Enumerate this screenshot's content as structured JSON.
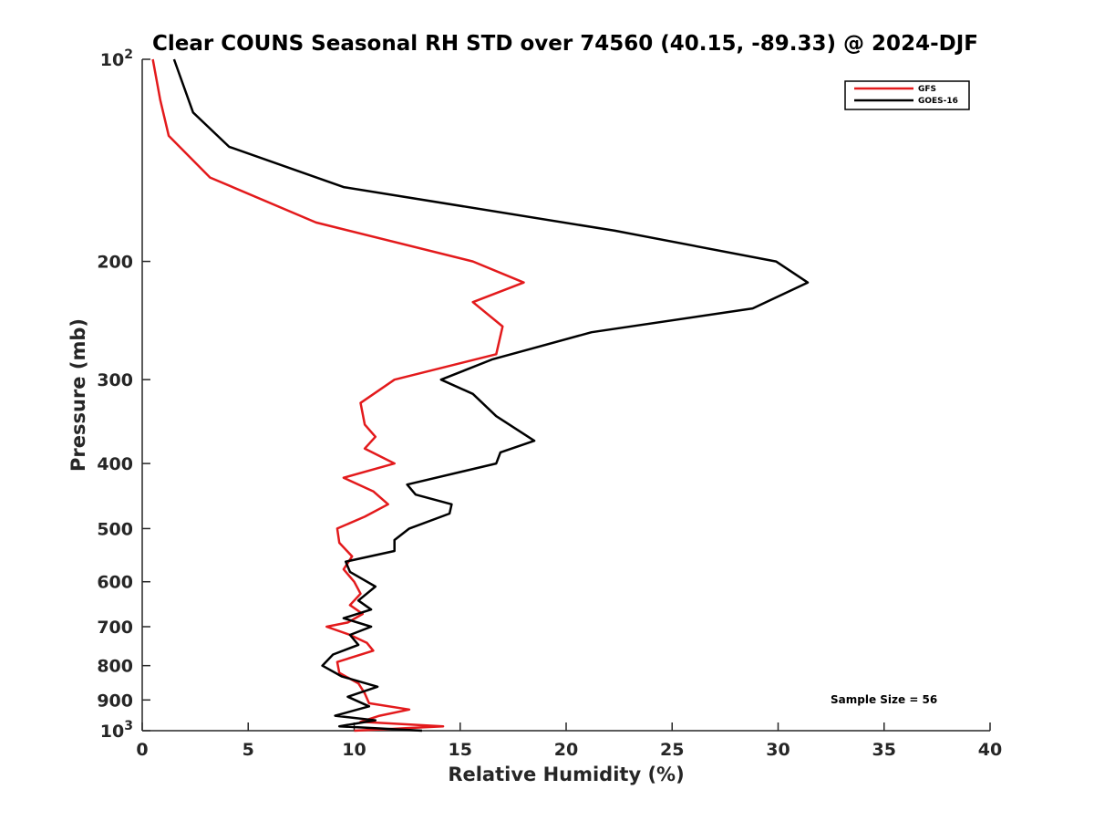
{
  "chart_data": {
    "type": "line",
    "title": "Clear COUNS Seasonal RH STD over 74560 (40.15, -89.33) @ 2024-DJF",
    "xlabel": "Relative Humidity (%)",
    "ylabel": "Pressure (mb)",
    "xlim": [
      0,
      40
    ],
    "ylim": [
      100,
      1000
    ],
    "yscale": "log",
    "y_reversed": true,
    "grid": false,
    "legend_position": "top-right",
    "x_ticks": [
      "0",
      "5",
      "10",
      "15",
      "20",
      "25",
      "30",
      "35",
      "40"
    ],
    "y_ticks": [
      {
        "value": 100,
        "base": "10",
        "exp": "2"
      },
      {
        "value": 200,
        "label": "200"
      },
      {
        "value": 300,
        "label": "300"
      },
      {
        "value": 400,
        "label": "400"
      },
      {
        "value": 500,
        "label": "500"
      },
      {
        "value": 600,
        "label": "600"
      },
      {
        "value": 700,
        "label": "700"
      },
      {
        "value": 800,
        "label": "800"
      },
      {
        "value": 900,
        "label": "900"
      },
      {
        "value": 1000,
        "base": "10",
        "exp": "3"
      }
    ],
    "annotation": "Sample Size = 56",
    "series": [
      {
        "name": "GFS",
        "color": "#e31a1c",
        "points": [
          [
            0.5,
            100
          ],
          [
            0.85,
            115
          ],
          [
            1.25,
            130
          ],
          [
            3.2,
            150
          ],
          [
            8.2,
            175
          ],
          [
            15.6,
            200
          ],
          [
            18.0,
            215
          ],
          [
            15.6,
            230
          ],
          [
            17.0,
            250
          ],
          [
            16.7,
            275
          ],
          [
            11.9,
            300
          ],
          [
            10.3,
            325
          ],
          [
            10.5,
            350
          ],
          [
            11.0,
            365
          ],
          [
            10.5,
            380
          ],
          [
            11.9,
            400
          ],
          [
            9.5,
            420
          ],
          [
            10.9,
            440
          ],
          [
            11.6,
            460
          ],
          [
            10.5,
            480
          ],
          [
            9.2,
            500
          ],
          [
            9.3,
            525
          ],
          [
            9.9,
            550
          ],
          [
            9.5,
            575
          ],
          [
            10.0,
            600
          ],
          [
            10.3,
            625
          ],
          [
            9.8,
            650
          ],
          [
            10.4,
            670
          ],
          [
            9.7,
            690
          ],
          [
            8.7,
            700
          ],
          [
            9.8,
            720
          ],
          [
            10.6,
            740
          ],
          [
            10.9,
            760
          ],
          [
            9.2,
            790
          ],
          [
            9.3,
            820
          ],
          [
            10.2,
            850
          ],
          [
            10.5,
            880
          ],
          [
            10.7,
            910
          ],
          [
            12.6,
            930
          ],
          [
            11.2,
            950
          ],
          [
            10.3,
            970
          ],
          [
            14.2,
            985
          ],
          [
            10.0,
            1000
          ]
        ]
      },
      {
        "name": "GOES-16",
        "color": "#000000",
        "points": [
          [
            1.5,
            100
          ],
          [
            2.4,
            120
          ],
          [
            4.1,
            135
          ],
          [
            9.5,
            155
          ],
          [
            22.3,
            180
          ],
          [
            29.9,
            200
          ],
          [
            31.4,
            215
          ],
          [
            28.8,
            235
          ],
          [
            21.2,
            255
          ],
          [
            16.5,
            280
          ],
          [
            14.1,
            300
          ],
          [
            15.6,
            315
          ],
          [
            16.7,
            340
          ],
          [
            18.5,
            370
          ],
          [
            16.9,
            385
          ],
          [
            16.7,
            400
          ],
          [
            12.5,
            430
          ],
          [
            12.9,
            445
          ],
          [
            14.6,
            460
          ],
          [
            14.5,
            475
          ],
          [
            12.6,
            500
          ],
          [
            11.9,
            520
          ],
          [
            11.9,
            540
          ],
          [
            9.6,
            560
          ],
          [
            9.8,
            580
          ],
          [
            11.0,
            610
          ],
          [
            10.2,
            640
          ],
          [
            10.8,
            660
          ],
          [
            9.5,
            680
          ],
          [
            10.8,
            700
          ],
          [
            9.8,
            720
          ],
          [
            10.2,
            745
          ],
          [
            9.0,
            770
          ],
          [
            8.5,
            800
          ],
          [
            9.4,
            830
          ],
          [
            11.1,
            860
          ],
          [
            9.7,
            890
          ],
          [
            10.7,
            920
          ],
          [
            9.1,
            950
          ],
          [
            11.0,
            965
          ],
          [
            9.3,
            985
          ],
          [
            13.2,
            1000
          ]
        ]
      }
    ]
  }
}
